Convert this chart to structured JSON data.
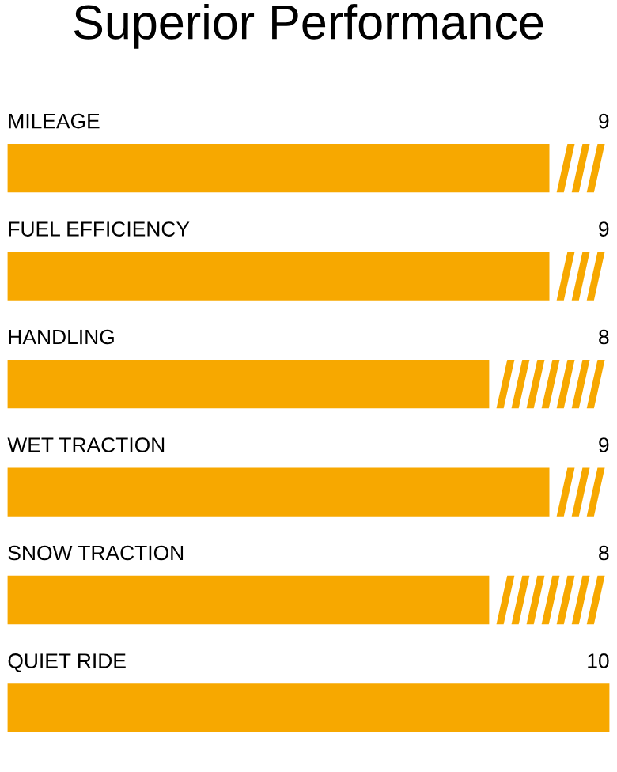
{
  "chart_data": {
    "type": "bar",
    "orientation": "horizontal",
    "title": "Superior Performance",
    "categories": [
      "MILEAGE",
      "FUEL EFFICIENCY",
      "HANDLING",
      "WET TRACTION",
      "SNOW TRACTION",
      "QUIET RIDE"
    ],
    "values": [
      9,
      9,
      8,
      9,
      8,
      10
    ],
    "color": "#f7a800",
    "xlim": [
      0,
      10
    ],
    "data_labels": true
  }
}
